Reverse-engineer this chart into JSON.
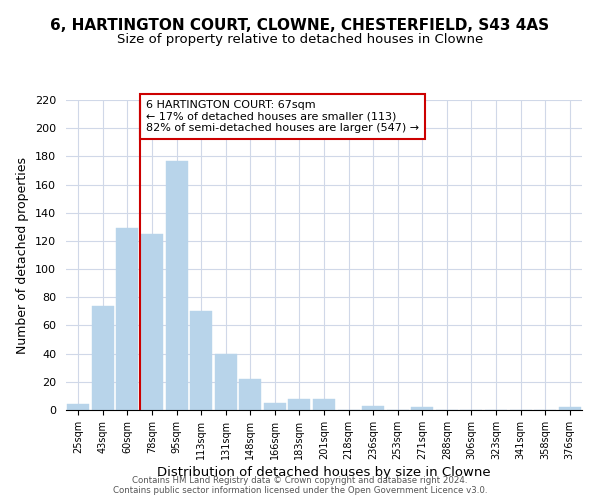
{
  "title": "6, HARTINGTON COURT, CLOWNE, CHESTERFIELD, S43 4AS",
  "subtitle": "Size of property relative to detached houses in Clowne",
  "xlabel": "Distribution of detached houses by size in Clowne",
  "ylabel": "Number of detached properties",
  "bar_labels": [
    "25sqm",
    "43sqm",
    "60sqm",
    "78sqm",
    "95sqm",
    "113sqm",
    "131sqm",
    "148sqm",
    "166sqm",
    "183sqm",
    "201sqm",
    "218sqm",
    "236sqm",
    "253sqm",
    "271sqm",
    "288sqm",
    "306sqm",
    "323sqm",
    "341sqm",
    "358sqm",
    "376sqm"
  ],
  "bar_values": [
    4,
    74,
    129,
    125,
    177,
    70,
    40,
    22,
    5,
    8,
    8,
    0,
    3,
    0,
    2,
    0,
    0,
    0,
    0,
    0,
    2
  ],
  "bar_color": "#b8d4ea",
  "bar_edge_color": "#b8d4ea",
  "vline_x": 2.5,
  "vline_color": "#cc0000",
  "ylim": [
    0,
    220
  ],
  "yticks": [
    0,
    20,
    40,
    60,
    80,
    100,
    120,
    140,
    160,
    180,
    200,
    220
  ],
  "annotation_title": "6 HARTINGTON COURT: 67sqm",
  "annotation_line1": "← 17% of detached houses are smaller (113)",
  "annotation_line2": "82% of semi-detached houses are larger (547) →",
  "annotation_box_color": "#ffffff",
  "annotation_box_edge": "#cc0000",
  "footer_line1": "Contains HM Land Registry data © Crown copyright and database right 2024.",
  "footer_line2": "Contains public sector information licensed under the Open Government Licence v3.0.",
  "grid_color": "#d0d8e8",
  "title_fontsize": 11,
  "subtitle_fontsize": 9.5,
  "xlabel_fontsize": 9.5,
  "ylabel_fontsize": 9
}
